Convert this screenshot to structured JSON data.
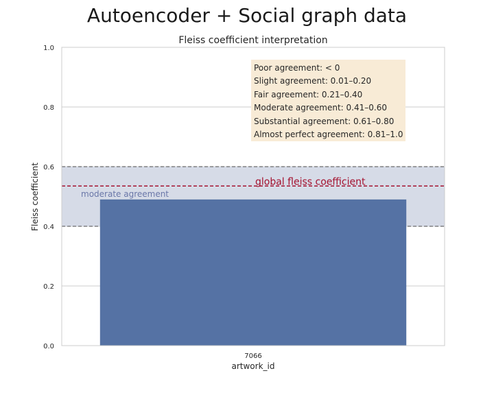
{
  "suptitle": "Autoencoder + Social graph data",
  "chart_data": {
    "type": "bar",
    "title": "Fleiss coefficient interpretation",
    "xlabel": "artwork_id",
    "ylabel": "Fleiss coefficient",
    "categories": [
      "7066"
    ],
    "values": [
      0.49
    ],
    "ylim": [
      0,
      1.0
    ],
    "yticks": [
      "0.0",
      "0.2",
      "0.4",
      "0.6",
      "0.8",
      "1.0"
    ],
    "grid": true,
    "bar_color": "#5572a4",
    "band": {
      "from": 0.4,
      "to": 0.6,
      "label": "moderate agreement",
      "color": "#d4d9e6",
      "label_color": "#6a77a8"
    },
    "global_line": {
      "value": 0.535,
      "label": "global fleiss coefficient",
      "color": "#a4122f"
    },
    "annotation_lines": [
      "Poor agreement:  < 0",
      "Slight agreement: 0.01–0.20",
      "Fair agreement: 0.21–0.40",
      "Moderate agreement: 0.41–0.60",
      "Substantial agreement: 0.61–0.80",
      "Almost perfect agreement: 0.81–1.0"
    ]
  }
}
